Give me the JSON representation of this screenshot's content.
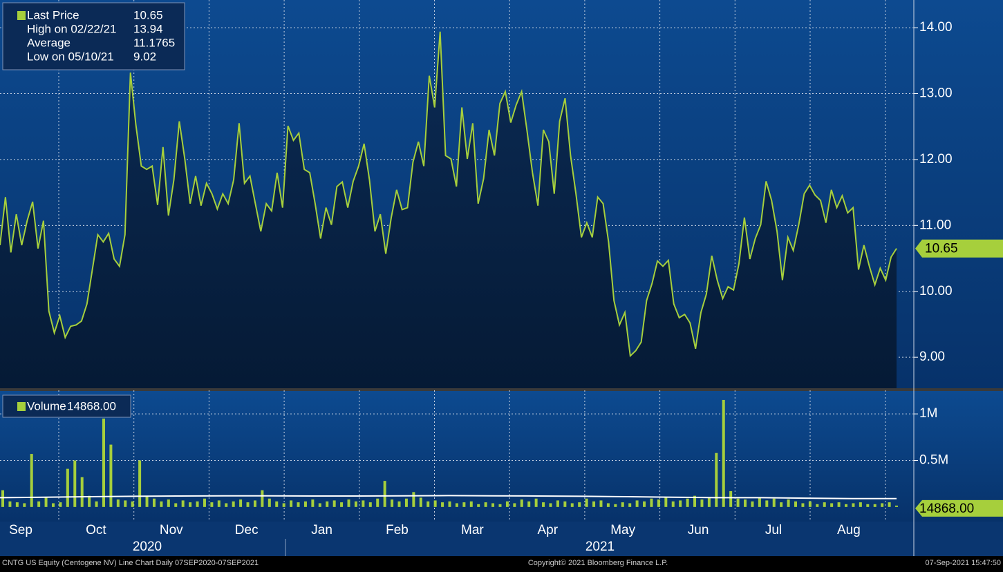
{
  "chart_data": [
    {
      "type": "line",
      "grid": true,
      "series": [
        {
          "name": "Last Price",
          "color": "#a6cf3c",
          "values": [
            10.7,
            11.43,
            10.59,
            11.17,
            10.7,
            11.07,
            11.36,
            10.65,
            11.07,
            9.7,
            9.37,
            9.63,
            9.3,
            9.47,
            9.49,
            9.55,
            9.81,
            10.33,
            10.86,
            10.75,
            10.88,
            10.49,
            10.38,
            10.86,
            13.32,
            12.53,
            11.9,
            11.85,
            11.9,
            11.31,
            12.19,
            11.15,
            11.69,
            12.58,
            12.01,
            11.33,
            11.75,
            11.3,
            11.64,
            11.48,
            11.25,
            11.48,
            11.33,
            11.69,
            12.55,
            11.64,
            11.75,
            11.33,
            10.91,
            11.33,
            11.22,
            11.8,
            11.27,
            12.51,
            12.29,
            12.4,
            11.85,
            11.8,
            11.33,
            10.8,
            11.27,
            11.01,
            11.59,
            11.66,
            11.27,
            11.67,
            11.9,
            12.24,
            11.69,
            10.91,
            11.17,
            10.57,
            11.12,
            11.54,
            11.24,
            11.27,
            11.96,
            12.27,
            11.9,
            13.27,
            12.79,
            13.94,
            12.06,
            12.01,
            11.59,
            12.79,
            12.01,
            12.55,
            11.33,
            11.71,
            12.45,
            12.06,
            12.85,
            13.03,
            12.56,
            12.83,
            13.03,
            12.43,
            11.8,
            11.3,
            12.45,
            12.27,
            11.48,
            12.58,
            12.93,
            12.06,
            11.48,
            10.82,
            11.04,
            10.82,
            11.43,
            11.33,
            10.75,
            9.86,
            9.49,
            9.68,
            9.02,
            9.1,
            9.23,
            9.86,
            10.12,
            10.46,
            10.38,
            10.47,
            9.81,
            9.6,
            9.65,
            9.52,
            9.13,
            9.68,
            9.96,
            10.54,
            10.17,
            9.89,
            10.07,
            10.02,
            10.42,
            11.12,
            10.49,
            10.8,
            11.01,
            11.67,
            11.38,
            10.91,
            10.17,
            10.82,
            10.62,
            11.01,
            11.48,
            11.61,
            11.46,
            11.38,
            11.04,
            11.54,
            11.27,
            11.45,
            11.19,
            11.27,
            10.33,
            10.7,
            10.38,
            10.1,
            10.35,
            10.17,
            10.52,
            10.65
          ]
        }
      ],
      "ylim": [
        8.53,
        14.42
      ],
      "yticks": [
        {
          "value": 9,
          "label": "9.00"
        },
        {
          "value": 10,
          "label": "10.00"
        },
        {
          "value": 11,
          "label": "11.00"
        },
        {
          "value": 12,
          "label": "12.00"
        },
        {
          "value": 13,
          "label": "13.00"
        },
        {
          "value": 14,
          "label": "14.00"
        }
      ],
      "legend": [
        {
          "label": "Last Price",
          "value": "10.65"
        },
        {
          "label": "High on 02/22/21",
          "value": "13.94"
        },
        {
          "label": "Average",
          "value": "11.1765"
        },
        {
          "label": "Low on 05/10/21",
          "value": "9.02"
        }
      ],
      "last_label": "10.65"
    },
    {
      "type": "bar",
      "grid": true,
      "series": [
        {
          "name": "Volume",
          "color": "#a6cf3c",
          "value_label": "14868.00",
          "values": [
            180000,
            60000,
            50000,
            40000,
            570000,
            60000,
            110000,
            40000,
            50000,
            410000,
            500000,
            320000,
            120000,
            60000,
            950000,
            670000,
            80000,
            70000,
            60000,
            500000,
            120000,
            90000,
            60000,
            80000,
            40000,
            70000,
            50000,
            60000,
            90000,
            50000,
            70000,
            40000,
            60000,
            80000,
            50000,
            70000,
            180000,
            90000,
            60000,
            40000,
            70000,
            50000,
            60000,
            80000,
            40000,
            60000,
            70000,
            50000,
            80000,
            60000,
            70000,
            50000,
            90000,
            280000,
            80000,
            60000,
            90000,
            160000,
            100000,
            60000,
            70000,
            50000,
            60000,
            40000,
            50000,
            60000,
            30000,
            50000,
            40000,
            30000,
            60000,
            40000,
            80000,
            60000,
            90000,
            50000,
            40000,
            70000,
            60000,
            40000,
            50000,
            90000,
            60000,
            70000,
            40000,
            30000,
            50000,
            40000,
            70000,
            60000,
            90000,
            80000,
            100000,
            60000,
            70000,
            90000,
            120000,
            80000,
            100000,
            580000,
            1150000,
            170000,
            90000,
            80000,
            60000,
            100000,
            70000,
            90000,
            50000,
            80000,
            60000,
            40000,
            60000,
            30000,
            50000,
            40000,
            50000,
            30000,
            40000,
            50000,
            30000,
            30000,
            40000,
            50000,
            14868
          ]
        }
      ],
      "average_values": [
        100000,
        105000,
        110000,
        115000,
        118000,
        120000,
        120000,
        118000,
        118000,
        120000,
        122000,
        120000,
        118000,
        115000,
        110000,
        105000,
        100000,
        100000,
        95000,
        90000,
        90000
      ],
      "ylim": [
        -157000,
        1246000
      ],
      "yticks": [
        {
          "value": 500000,
          "label": "0.5M"
        },
        {
          "value": 1000000,
          "label": "1M"
        }
      ],
      "last_label": "14868.00"
    }
  ],
  "months": [
    "Sep",
    "Oct",
    "Nov",
    "Dec",
    "Jan",
    "Feb",
    "Mar",
    "Apr",
    "May",
    "Jun",
    "Jul",
    "Aug"
  ],
  "years": [
    "2020",
    "2021"
  ],
  "footer": {
    "left": "CNTG US Equity (Centogene NV) Line Chart  Daily 07SEP2020-07SEP2021",
    "center": "Copyright© 2021 Bloomberg Finance L.P.",
    "right": "07-Sep-2021 15:47:50"
  }
}
